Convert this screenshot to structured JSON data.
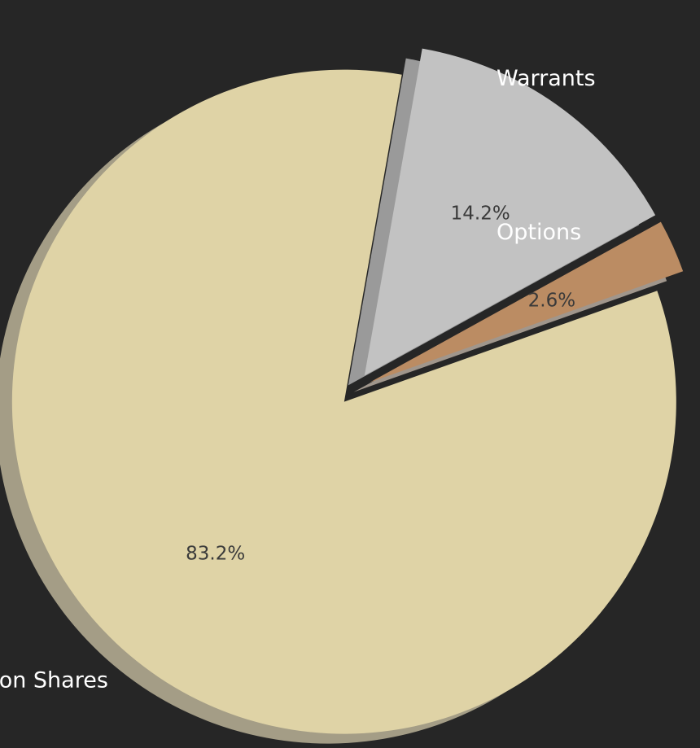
{
  "chart_data": {
    "type": "pie",
    "title": "",
    "slices": [
      {
        "label": "Common Shares",
        "value": 83.2,
        "pct_label": "83.2%",
        "color": "#dfd3a6",
        "shadow": "#a49d86"
      },
      {
        "label": "Options",
        "value": 2.6,
        "pct_label": "2.6%",
        "color": "#bb8c63",
        "shadow": "#a0968c"
      },
      {
        "label": "Warrants",
        "value": 14.2,
        "pct_label": "14.2%",
        "color": "#c2c2c2",
        "shadow": "#9a9a9a"
      }
    ],
    "exploded": true,
    "shadow": true,
    "background": "#262626",
    "label_color": "#ffffff",
    "pct_color": "#3a3a3a"
  }
}
